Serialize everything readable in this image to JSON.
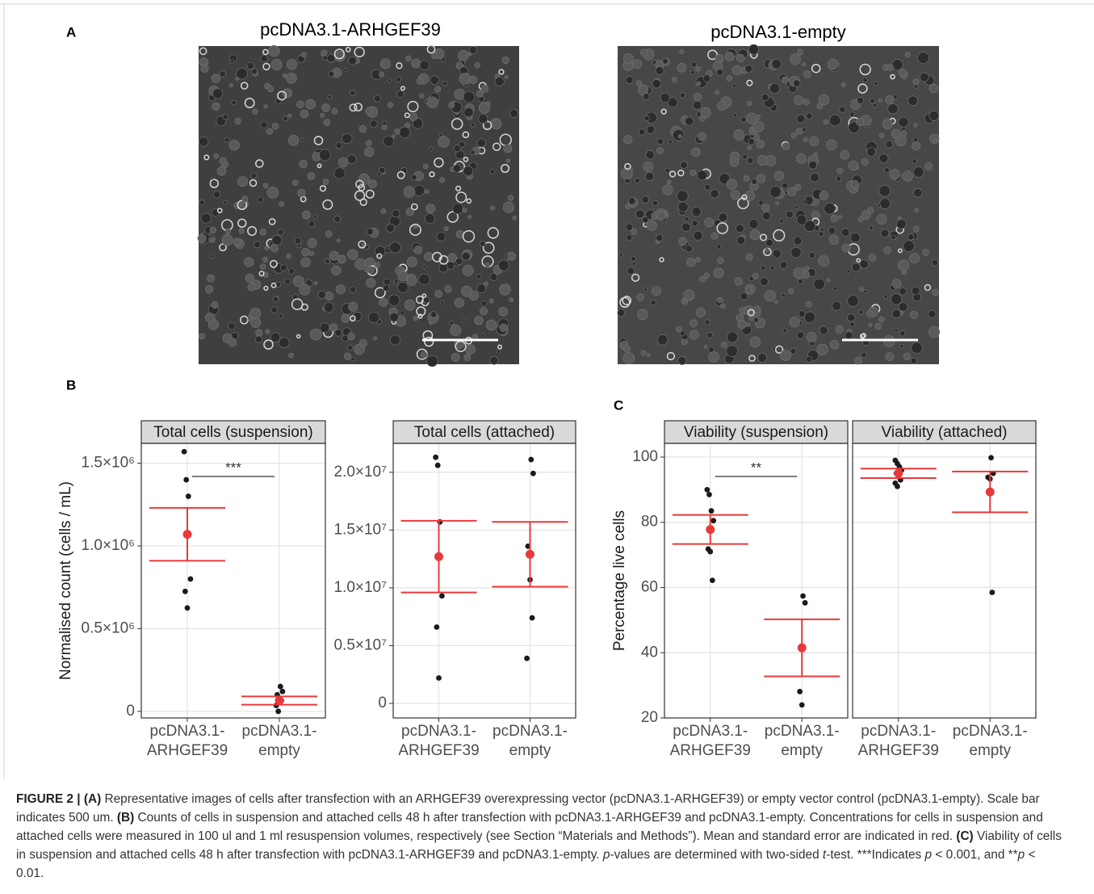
{
  "panels": {
    "a": {
      "label": "A",
      "images": [
        {
          "title": "pcDNA3.1-ARHGEF39"
        },
        {
          "title": "pcDNA3.1-empty"
        }
      ]
    },
    "b": {
      "label": "B"
    },
    "c": {
      "label": "C"
    }
  },
  "chart_data": [
    {
      "type": "dot",
      "title": "Total cells (suspension)",
      "ylabel": "Normalised count (cells / mL)",
      "categories": [
        "pcDNA3.1-ARHGEF39",
        "pcDNA3.1-empty"
      ],
      "points": [
        [
          1570000,
          1400000,
          1300000,
          800000,
          725000,
          625000
        ],
        [
          150000,
          120000,
          100000,
          80000,
          65000,
          35000,
          0
        ]
      ],
      "mean": [
        1070000,
        65000
      ],
      "error": [
        160000,
        25000
      ],
      "point_color": "#1a1a1a",
      "mean_color": "#e8393a",
      "ylim": [
        -40000,
        1620000
      ],
      "yticks": [
        0,
        {
          "value": 500000,
          "label": "0.5×10⁶"
        },
        {
          "value": 1000000,
          "label": "1.0×10⁶"
        },
        {
          "value": 1500000,
          "label": "1.5×10⁶"
        }
      ],
      "grid": true,
      "annotation": {
        "text": "***"
      }
    },
    {
      "type": "dot",
      "title": "Total cells (attached)",
      "categories": [
        "pcDNA3.1-ARHGEF39",
        "pcDNA3.1-empty"
      ],
      "points": [
        [
          21300000,
          20600000,
          15700000,
          9300000,
          6600000,
          2200000
        ],
        [
          21100000,
          19900000,
          13600000,
          10700000,
          7400000,
          3900000
        ]
      ],
      "mean": [
        12700000,
        12900000
      ],
      "error": [
        3100000,
        2800000
      ],
      "point_color": "#1a1a1a",
      "mean_color": "#e8393a",
      "ylim": [
        -1260000,
        22500000
      ],
      "yticks": [
        0,
        {
          "value": 5000000,
          "label": "0.5×10⁷"
        },
        {
          "value": 10000000,
          "label": "1.0×10⁷"
        },
        {
          "value": 15000000,
          "label": "1.5×10⁷"
        },
        {
          "value": 20000000,
          "label": "2.0×10⁷"
        }
      ],
      "grid": true
    },
    {
      "type": "dot",
      "title": "Viability (suspension)",
      "ylabel": "Percentage live cells",
      "categories": [
        "pcDNA3.1-ARHGEF39",
        "pcDNA3.1-empty"
      ],
      "points": [
        [
          90,
          88.5,
          83.5,
          80.5,
          71.8,
          71,
          62.2
        ],
        [
          57.4,
          55.3,
          28.1,
          24
        ]
      ],
      "mean": [
        77.8,
        41.5
      ],
      "error": [
        4.45,
        8.75
      ],
      "point_color": "#1a1a1a",
      "mean_color": "#e8393a",
      "ylim": [
        20,
        104.2
      ],
      "yticks": [
        20,
        40,
        60,
        80,
        100
      ],
      "grid": true,
      "annotation": {
        "text": "**"
      }
    },
    {
      "type": "dot",
      "title": "Viability (attached)",
      "categories": [
        "pcDNA3.1-ARHGEF39",
        "pcDNA3.1-empty"
      ],
      "points": [
        [
          99,
          98,
          97,
          96,
          95,
          94,
          93,
          92,
          91
        ],
        [
          99.8,
          95,
          93.8,
          93.3,
          58.5
        ]
      ],
      "mean": [
        95,
        89.3
      ],
      "error": [
        1.45,
        6.25
      ],
      "point_color": "#1a1a1a",
      "mean_color": "#e8393a",
      "ylim": [
        20,
        104.2
      ],
      "yticks": [
        20,
        40,
        60,
        80,
        100
      ],
      "ytick_labels": false,
      "grid": true
    }
  ],
  "caption": [
    "FIGURE 2 | (A)",
    " Representative images of cells after transfection with an ARHGEF39 overexpressing vector (pcDNA3.1-ARHGEF39) or empty vector control (pcDNA3.1-empty). Scale bar indicates 500 um. ",
    "(B)",
    " Counts of cells in suspension and attached cells 48 h after transfection with pcDNA3.1-ARHGEF39 and pcDNA3.1-empty. Concentrations for cells in suspension and attached cells were measured in 100 ul and 1 ml resuspension volumes, respectively (see Section “Materials and Methods”). Mean and standard error are indicated in red. ",
    "(C)",
    " Viability of cells in suspension and attached cells 48 h after transfection with pcDNA3.1-ARHGEF39 and pcDNA3.1-empty. ",
    "p",
    "-values are determined with two-sided ",
    "t",
    "-test. ***Indicates ",
    "p",
    " < 0.001, and **",
    "p",
    " < 0.01."
  ]
}
